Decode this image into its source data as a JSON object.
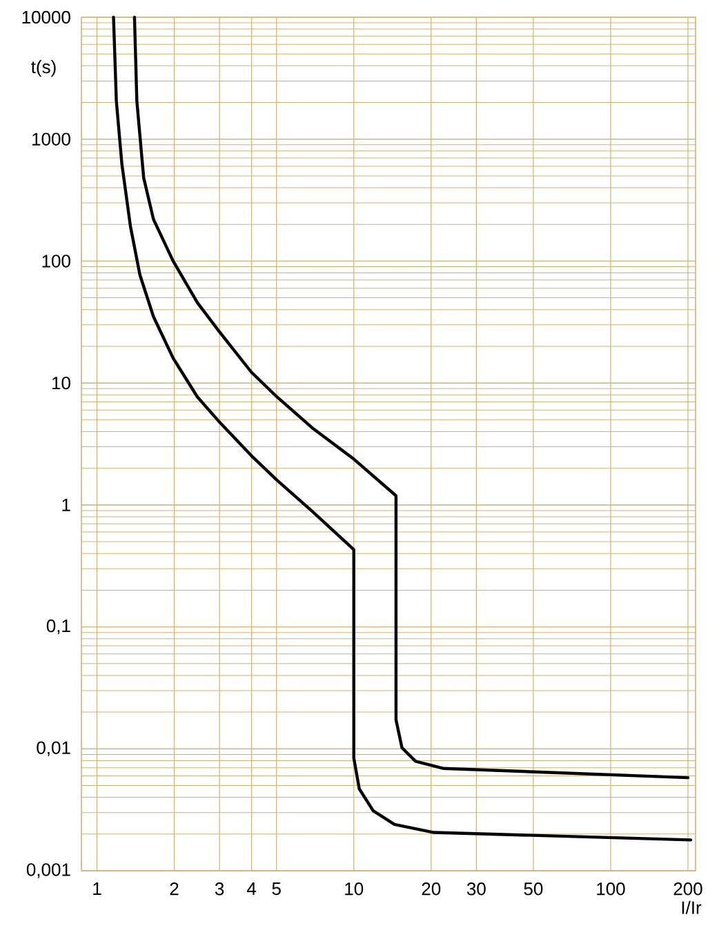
{
  "chart_data": {
    "type": "line",
    "xlabel": "I/Ir",
    "ylabel": "t(s)",
    "log": "xy",
    "grid": true,
    "xlim": [
      0.87,
      214
    ],
    "ylim": [
      0.001,
      10000
    ],
    "xticks": [
      1,
      2,
      3,
      4,
      5,
      10,
      20,
      30,
      50,
      100,
      200
    ],
    "yticks": [
      {
        "value": 0.001,
        "label": "0,001"
      },
      {
        "value": 0.01,
        "label": "0,01"
      },
      {
        "value": 0.1,
        "label": "0,1"
      },
      {
        "value": 1,
        "label": "1"
      },
      {
        "value": 10,
        "label": "10"
      },
      {
        "value": 100,
        "label": "100"
      },
      {
        "value": 1000,
        "label": "1000"
      },
      {
        "value": 10000,
        "label": "10000"
      }
    ],
    "series": [
      {
        "color": "#000000",
        "x": [
          1.16,
          1.19,
          1.25,
          1.35,
          1.47,
          1.66,
          1.98,
          2.46,
          2.97,
          3.99,
          5.02,
          6.88,
          10,
          10,
          10.5,
          11.9,
          14.4,
          20.5,
          205
        ],
        "values": [
          10000,
          2050,
          630,
          193,
          77,
          35,
          16,
          7.7,
          4.9,
          2.54,
          1.6,
          0.89,
          0.43,
          0.0084,
          0.0047,
          0.0031,
          0.0024,
          0.00206,
          0.00179
        ]
      },
      {
        "color": "#000000",
        "x": [
          1.4,
          1.43,
          1.52,
          1.66,
          1.98,
          2.46,
          2.97,
          3.99,
          5.02,
          6.88,
          10,
          14.6,
          14.6,
          15.4,
          17.4,
          22.4,
          200
        ],
        "values": [
          10000,
          2050,
          484,
          220,
          100,
          45.6,
          27,
          12.3,
          7.7,
          4.3,
          2.38,
          1.19,
          0.0173,
          0.0102,
          0.0079,
          0.0069,
          0.0058
        ]
      }
    ]
  }
}
